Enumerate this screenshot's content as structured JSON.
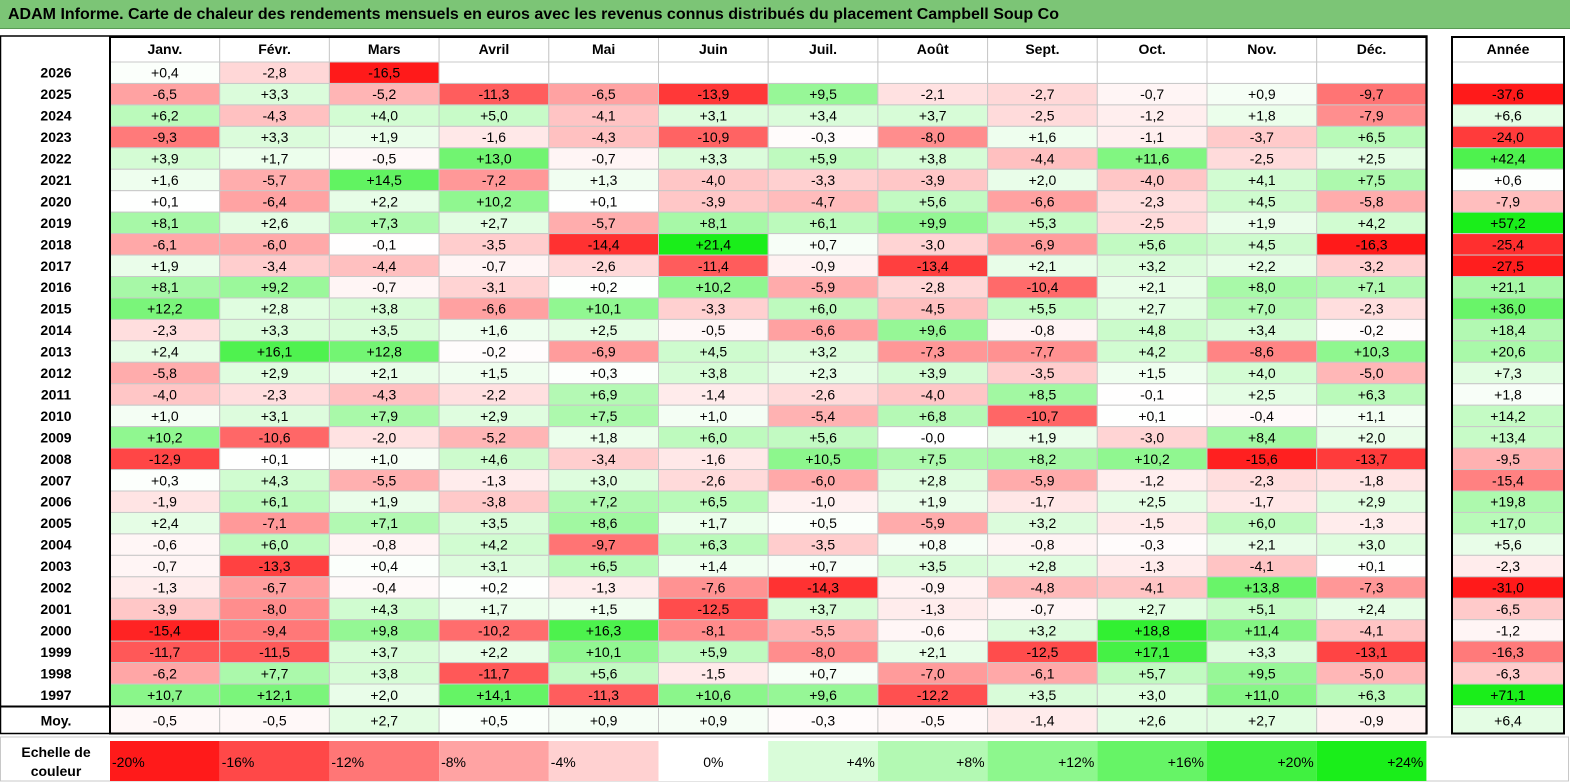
{
  "title": "ADAM Informe. Carte de chaleur des rendements mensuels en euros avec les revenus connus distribués du placement Campbell Soup Co",
  "chart_data": {
    "type": "heatmap",
    "months": [
      "Janv.",
      "Févr.",
      "Mars",
      "Avril",
      "Mai",
      "Juin",
      "Juil.",
      "Août",
      "Sept.",
      "Oct.",
      "Nov.",
      "Déc."
    ],
    "year_header": "Année",
    "rows": [
      {
        "year": "2026",
        "values": [
          "+0,4",
          "-2,8",
          "-16,5",
          "",
          "",
          "",
          "",
          "",
          "",
          "",
          "",
          ""
        ],
        "annual": ""
      },
      {
        "year": "2025",
        "values": [
          "-6,5",
          "+3,3",
          "-5,2",
          "-11,3",
          "-6,5",
          "-13,9",
          "+9,5",
          "-2,1",
          "-2,7",
          "-0,7",
          "+0,9",
          "-9,7"
        ],
        "annual": "-37,6"
      },
      {
        "year": "2024",
        "values": [
          "+6,2",
          "-4,3",
          "+4,0",
          "+5,0",
          "-4,1",
          "+3,1",
          "+3,4",
          "+3,7",
          "-2,5",
          "-1,2",
          "+1,8",
          "-7,9"
        ],
        "annual": "+6,6"
      },
      {
        "year": "2023",
        "values": [
          "-9,3",
          "+3,3",
          "+1,9",
          "-1,6",
          "-4,3",
          "-10,9",
          "-0,3",
          "-8,0",
          "+1,6",
          "-1,1",
          "-3,7",
          "+6,5"
        ],
        "annual": "-24,0"
      },
      {
        "year": "2022",
        "values": [
          "+3,9",
          "+1,7",
          "-0,5",
          "+13,0",
          "-0,7",
          "+3,3",
          "+5,9",
          "+3,8",
          "-4,4",
          "+11,6",
          "-2,5",
          "+2,5"
        ],
        "annual": "+42,4"
      },
      {
        "year": "2021",
        "values": [
          "+1,6",
          "-5,7",
          "+14,5",
          "-7,2",
          "+1,3",
          "-4,0",
          "-3,3",
          "-3,9",
          "+2,0",
          "-4,0",
          "+4,1",
          "+7,5"
        ],
        "annual": "+0,6"
      },
      {
        "year": "2020",
        "values": [
          "+0,1",
          "-6,4",
          "+2,2",
          "+10,2",
          "+0,1",
          "-3,9",
          "-4,7",
          "+5,6",
          "-6,6",
          "-2,3",
          "+4,5",
          "-5,8"
        ],
        "annual": "-7,9"
      },
      {
        "year": "2019",
        "values": [
          "+8,1",
          "+2,6",
          "+7,3",
          "+2,7",
          "-5,7",
          "+8,1",
          "+6,1",
          "+9,9",
          "+5,3",
          "-2,5",
          "+1,9",
          "+4,2"
        ],
        "annual": "+57,2"
      },
      {
        "year": "2018",
        "values": [
          "-6,1",
          "-6,0",
          "-0,1",
          "-3,5",
          "-14,4",
          "+21,4",
          "+0,7",
          "-3,0",
          "-6,9",
          "+5,6",
          "+4,5",
          "-16,3"
        ],
        "annual": "-25,4"
      },
      {
        "year": "2017",
        "values": [
          "+1,9",
          "-3,4",
          "-4,4",
          "-0,7",
          "-2,6",
          "-11,4",
          "-0,9",
          "-13,4",
          "+2,1",
          "+3,2",
          "+2,2",
          "-3,2"
        ],
        "annual": "-27,5"
      },
      {
        "year": "2016",
        "values": [
          "+8,1",
          "+9,2",
          "-0,7",
          "-3,1",
          "+0,2",
          "+10,2",
          "-5,9",
          "-2,8",
          "-10,4",
          "+2,1",
          "+8,0",
          "+7,1"
        ],
        "annual": "+21,1"
      },
      {
        "year": "2015",
        "values": [
          "+12,2",
          "+2,8",
          "+3,8",
          "-6,6",
          "+10,1",
          "-3,3",
          "+6,0",
          "-4,5",
          "+5,5",
          "+2,7",
          "+7,0",
          "-2,3"
        ],
        "annual": "+36,0"
      },
      {
        "year": "2014",
        "values": [
          "-2,3",
          "+3,3",
          "+3,5",
          "+1,6",
          "+2,5",
          "-0,5",
          "-6,6",
          "+9,6",
          "-0,8",
          "+4,8",
          "+3,4",
          "-0,2"
        ],
        "annual": "+18,4"
      },
      {
        "year": "2013",
        "values": [
          "+2,4",
          "+16,1",
          "+12,8",
          "-0,2",
          "-6,9",
          "+4,5",
          "+3,2",
          "-7,3",
          "-7,7",
          "+4,2",
          "-8,6",
          "+10,3"
        ],
        "annual": "+20,6"
      },
      {
        "year": "2012",
        "values": [
          "-5,8",
          "+2,9",
          "+2,1",
          "+1,5",
          "+0,3",
          "+3,8",
          "+2,3",
          "+3,9",
          "-3,5",
          "+1,5",
          "+4,0",
          "-5,0"
        ],
        "annual": "+7,3"
      },
      {
        "year": "2011",
        "values": [
          "-4,0",
          "-2,3",
          "-4,3",
          "-2,2",
          "+6,9",
          "-1,4",
          "-2,6",
          "-4,0",
          "+8,5",
          "-0,1",
          "+2,5",
          "+6,3"
        ],
        "annual": "+1,8"
      },
      {
        "year": "2010",
        "values": [
          "+1,0",
          "+3,1",
          "+7,9",
          "+2,9",
          "+7,5",
          "+1,0",
          "-5,4",
          "+6,8",
          "-10,7",
          "+0,1",
          "-0,4",
          "+1,1"
        ],
        "annual": "+14,2"
      },
      {
        "year": "2009",
        "values": [
          "+10,2",
          "-10,6",
          "-2,0",
          "-5,2",
          "+1,8",
          "+6,0",
          "+5,6",
          "-0,0",
          "+1,9",
          "-3,0",
          "+8,4",
          "+2,0"
        ],
        "annual": "+13,4"
      },
      {
        "year": "2008",
        "values": [
          "-12,9",
          "+0,1",
          "+1,0",
          "+4,6",
          "-3,4",
          "-1,6",
          "+10,5",
          "+7,5",
          "+8,2",
          "+10,2",
          "-15,6",
          "-13,7"
        ],
        "annual": "-9,5"
      },
      {
        "year": "2007",
        "values": [
          "+0,3",
          "+4,3",
          "-5,5",
          "-1,3",
          "+3,0",
          "-2,6",
          "-6,0",
          "+2,8",
          "-5,9",
          "-1,2",
          "-2,3",
          "-1,8"
        ],
        "annual": "-15,4"
      },
      {
        "year": "2006",
        "values": [
          "-1,9",
          "+6,1",
          "+1,9",
          "-3,8",
          "+7,2",
          "+6,5",
          "-1,0",
          "+1,9",
          "-1,7",
          "+2,5",
          "-1,7",
          "+2,9"
        ],
        "annual": "+19,8"
      },
      {
        "year": "2005",
        "values": [
          "+2,4",
          "-7,1",
          "+7,1",
          "+3,5",
          "+8,6",
          "+1,7",
          "+0,5",
          "-5,9",
          "+3,2",
          "-1,5",
          "+6,0",
          "-1,3"
        ],
        "annual": "+17,0"
      },
      {
        "year": "2004",
        "values": [
          "-0,6",
          "+6,0",
          "-0,8",
          "+4,2",
          "-9,7",
          "+6,3",
          "-3,5",
          "+0,8",
          "-0,8",
          "-0,3",
          "+2,1",
          "+3,0"
        ],
        "annual": "+5,6"
      },
      {
        "year": "2003",
        "values": [
          "-0,7",
          "-13,3",
          "+0,4",
          "+3,1",
          "+6,5",
          "+1,4",
          "+0,7",
          "+3,5",
          "+2,8",
          "-1,3",
          "-4,1",
          "+0,1"
        ],
        "annual": "-2,3"
      },
      {
        "year": "2002",
        "values": [
          "-1,3",
          "-6,7",
          "-0,4",
          "+0,2",
          "-1,3",
          "-7,6",
          "-14,3",
          "-0,9",
          "-4,8",
          "-4,1",
          "+13,8",
          "-7,3"
        ],
        "annual": "-31,0"
      },
      {
        "year": "2001",
        "values": [
          "-3,9",
          "-8,0",
          "+4,3",
          "+1,7",
          "+1,5",
          "-12,5",
          "+3,7",
          "-1,3",
          "-0,7",
          "+2,7",
          "+5,1",
          "+2,4"
        ],
        "annual": "-6,5"
      },
      {
        "year": "2000",
        "values": [
          "-15,4",
          "-9,4",
          "+9,8",
          "-10,2",
          "+16,3",
          "-8,1",
          "-5,5",
          "-0,6",
          "+3,2",
          "+18,8",
          "+11,4",
          "-4,1"
        ],
        "annual": "-1,2"
      },
      {
        "year": "1999",
        "values": [
          "-11,7",
          "-11,5",
          "+3,7",
          "+2,2",
          "+10,1",
          "+5,9",
          "-8,0",
          "+2,1",
          "-12,5",
          "+17,1",
          "+3,3",
          "-13,1"
        ],
        "annual": "-16,3"
      },
      {
        "year": "1998",
        "values": [
          "-6,2",
          "+7,7",
          "+3,8",
          "-11,7",
          "+5,6",
          "-1,5",
          "+0,7",
          "-7,0",
          "-6,1",
          "+5,7",
          "+9,5",
          "-5,0"
        ],
        "annual": "-6,3"
      },
      {
        "year": "1997",
        "values": [
          "+10,7",
          "+12,1",
          "+2,0",
          "+14,1",
          "-11,3",
          "+10,6",
          "+9,6",
          "-12,2",
          "+3,5",
          "+3,0",
          "+11,0",
          "+6,3"
        ],
        "annual": "+71,1"
      }
    ],
    "average": {
      "label": "Moy.",
      "values": [
        "-0,5",
        "-0,5",
        "+2,7",
        "+0,5",
        "+0,9",
        "+0,9",
        "-0,3",
        "-0,5",
        "-1,4",
        "+2,6",
        "+2,7",
        "-0,9"
      ],
      "annual": "+6,4"
    },
    "scale": {
      "label_line1": "Echelle de",
      "label_line2": "couleur",
      "steps": [
        "-20%",
        "-16%",
        "-12%",
        "-8%",
        "-4%",
        "0%",
        "+4%",
        "+8%",
        "+12%",
        "+16%",
        "+20%",
        "+24%"
      ]
    }
  }
}
